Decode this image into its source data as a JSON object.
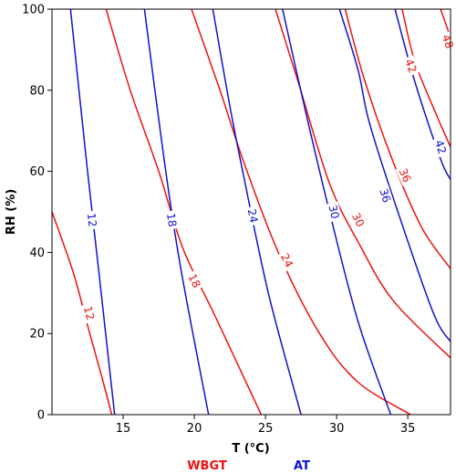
{
  "chart_data": {
    "type": "contour",
    "xlabel": "T (°C)",
    "ylabel": "RH (%)",
    "xlim": [
      10,
      38
    ],
    "ylim": [
      0,
      100
    ],
    "xticks": [
      15,
      20,
      25,
      30,
      35
    ],
    "yticks": [
      0,
      20,
      40,
      60,
      80,
      100
    ],
    "grid": false,
    "legend": {
      "placement": "bottom-center",
      "entries": [
        {
          "label": "WBGT",
          "color": "#ee1111"
        },
        {
          "label": "AT",
          "color": "#1111cc"
        }
      ]
    },
    "series": [
      {
        "name": "WBGT",
        "color": "#ee1111",
        "levels": [
          {
            "level": "12",
            "points": [
              [
                10.0,
                50
              ],
              [
                11.5,
                35
              ],
              [
                12.5,
                22
              ],
              [
                13.6,
                8
              ],
              [
                14.2,
                0
              ]
            ]
          },
          {
            "level": "18",
            "points": [
              [
                13.8,
                100
              ],
              [
                15.5,
                80
              ],
              [
                17.5,
                60
              ],
              [
                19.2,
                41
              ],
              [
                21.5,
                24
              ],
              [
                24.7,
                0
              ]
            ]
          },
          {
            "level": "24",
            "points": [
              [
                19.8,
                100
              ],
              [
                21.8,
                80
              ],
              [
                23.5,
                62
              ],
              [
                25.9,
                40
              ],
              [
                28.8,
                20
              ],
              [
                31.5,
                8
              ],
              [
                35.2,
                0
              ]
            ]
          },
          {
            "level": "30",
            "points": [
              [
                25.7,
                100
              ],
              [
                27.3,
                82
              ],
              [
                29.5,
                57
              ],
              [
                31.6,
                42
              ],
              [
                34.0,
                28
              ],
              [
                38.0,
                14
              ]
            ]
          },
          {
            "level": "36",
            "points": [
              [
                30.6,
                100
              ],
              [
                32.0,
                82
              ],
              [
                34.0,
                62
              ],
              [
                36.0,
                46
              ],
              [
                38.0,
                36
              ]
            ]
          },
          {
            "level": "42",
            "points": [
              [
                34.6,
                100
              ],
              [
                35.5,
                87
              ],
              [
                37.0,
                74
              ],
              [
                38.0,
                66
              ]
            ]
          },
          {
            "level": "48",
            "points": [
              [
                37.3,
                100
              ],
              [
                38.0,
                93
              ]
            ]
          }
        ]
      },
      {
        "name": "AT",
        "color": "#1111cc",
        "levels": [
          {
            "level": "12",
            "points": [
              [
                11.3,
                100
              ],
              [
                12.5,
                60
              ],
              [
                13.3,
                35
              ],
              [
                14.4,
                0
              ]
            ]
          },
          {
            "level": "18",
            "points": [
              [
                16.5,
                100
              ],
              [
                17.8,
                65
              ],
              [
                19.0,
                37
              ],
              [
                21.0,
                0
              ]
            ]
          },
          {
            "level": "24",
            "points": [
              [
                21.3,
                100
              ],
              [
                22.5,
                76
              ],
              [
                23.4,
                60
              ],
              [
                25.2,
                30
              ],
              [
                27.5,
                0
              ]
            ]
          },
          {
            "level": "30",
            "points": [
              [
                26.2,
                100
              ],
              [
                27.8,
                75
              ],
              [
                29.5,
                50
              ],
              [
                31.5,
                23
              ],
              [
                33.8,
                0
              ]
            ]
          },
          {
            "level": "36",
            "points": [
              [
                30.2,
                100
              ],
              [
                31.5,
                85
              ],
              [
                32.3,
                72
              ],
              [
                34.3,
                50
              ],
              [
                36.8,
                25
              ],
              [
                38.0,
                18
              ]
            ]
          },
          {
            "level": "42",
            "points": [
              [
                34.1,
                100
              ],
              [
                35.5,
                82
              ],
              [
                37.3,
                63
              ],
              [
                38.0,
                58
              ]
            ]
          }
        ]
      }
    ],
    "contour_labels": [
      {
        "series": "WBGT",
        "text": "12",
        "x": 12.6,
        "y": 25
      },
      {
        "series": "WBGT",
        "text": "18",
        "x": 20.0,
        "y": 33
      },
      {
        "series": "WBGT",
        "text": "24",
        "x": 26.5,
        "y": 38
      },
      {
        "series": "WBGT",
        "text": "30",
        "x": 31.5,
        "y": 48
      },
      {
        "series": "WBGT",
        "text": "36",
        "x": 34.8,
        "y": 59
      },
      {
        "series": "WBGT",
        "text": "42",
        "x": 35.2,
        "y": 86
      },
      {
        "series": "WBGT",
        "text": "48",
        "x": 37.8,
        "y": 92
      },
      {
        "series": "AT",
        "text": "12",
        "x": 12.8,
        "y": 48
      },
      {
        "series": "AT",
        "text": "18",
        "x": 18.4,
        "y": 48
      },
      {
        "series": "AT",
        "text": "24",
        "x": 24.1,
        "y": 49
      },
      {
        "series": "AT",
        "text": "30",
        "x": 29.8,
        "y": 50
      },
      {
        "series": "AT",
        "text": "36",
        "x": 33.4,
        "y": 54
      },
      {
        "series": "AT",
        "text": "42",
        "x": 37.3,
        "y": 66
      }
    ]
  }
}
